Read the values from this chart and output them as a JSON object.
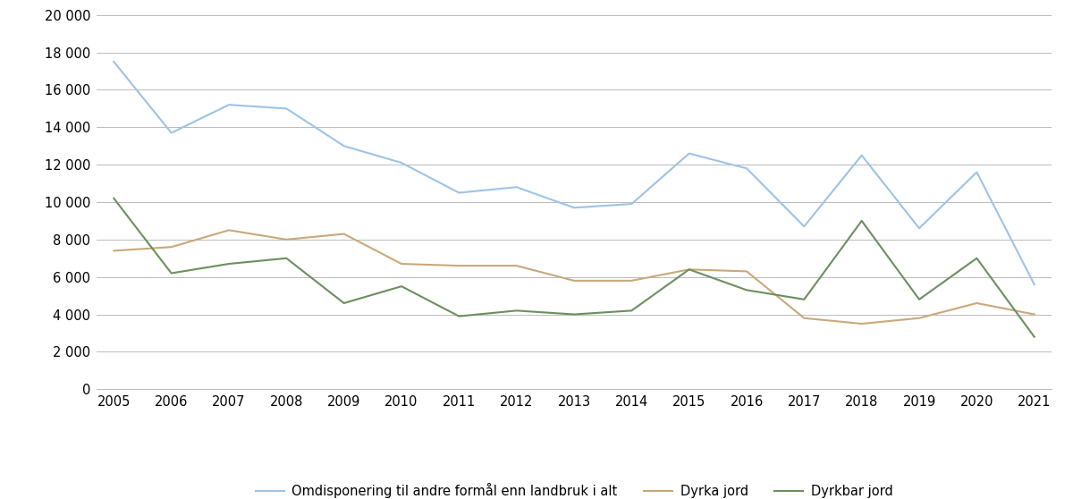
{
  "years": [
    2005,
    2006,
    2007,
    2008,
    2009,
    2010,
    2011,
    2012,
    2013,
    2014,
    2015,
    2016,
    2017,
    2018,
    2019,
    2020,
    2021
  ],
  "omdisponering": [
    17500,
    13700,
    15200,
    15000,
    13000,
    12100,
    10500,
    10800,
    9700,
    9900,
    12600,
    11800,
    8700,
    12500,
    8600,
    11600,
    5600
  ],
  "dyrka_jord": [
    7400,
    7600,
    8500,
    8000,
    8300,
    6700,
    6600,
    6600,
    5800,
    5800,
    6400,
    6300,
    3800,
    3500,
    3800,
    4600,
    4000
  ],
  "dyrkbar_jord": [
    10200,
    6200,
    6700,
    7000,
    4600,
    5500,
    3900,
    4200,
    4000,
    4200,
    6400,
    5300,
    4800,
    9000,
    4800,
    7000,
    2800
  ],
  "line_colors": {
    "omdisponering": "#9dc3e6",
    "dyrka_jord": "#c9a87a",
    "dyrkbar_jord": "#6b8f5e"
  },
  "legend_labels": [
    "Omdisponering til andre formål enn landbruk i alt",
    "Dyrka jord",
    "Dyrkbar jord"
  ],
  "ylim": [
    0,
    20000
  ],
  "yticks": [
    0,
    2000,
    4000,
    6000,
    8000,
    10000,
    12000,
    14000,
    16000,
    18000,
    20000
  ],
  "ytick_labels": [
    "0",
    "2 000",
    "4 000",
    "6 000",
    "8 000",
    "10 000",
    "12 000",
    "14 000",
    "16 000",
    "18 000",
    "20 000"
  ],
  "grid_color": "#b0b0b0",
  "background_color": "#ffffff",
  "line_width": 1.5
}
